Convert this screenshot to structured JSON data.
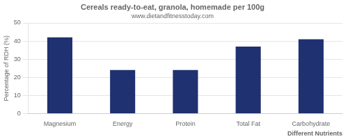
{
  "chart_data": {
    "type": "bar",
    "title": "Cereals ready-to-eat, granola, homemade per 100g",
    "subtitle": "www.dietandfitnesstoday.com",
    "categories": [
      "Magnesium",
      "Energy",
      "Protein",
      "Total Fat",
      "Carbohydrate"
    ],
    "values": [
      42,
      24,
      24,
      37,
      41
    ],
    "color": "#1f3170",
    "xlabel": "Different Nutrients",
    "ylabel": "Percentage of RDH (%)",
    "ylim": [
      0,
      50
    ],
    "yticks": [
      0,
      10,
      20,
      30,
      40,
      50
    ],
    "grid": true
  }
}
